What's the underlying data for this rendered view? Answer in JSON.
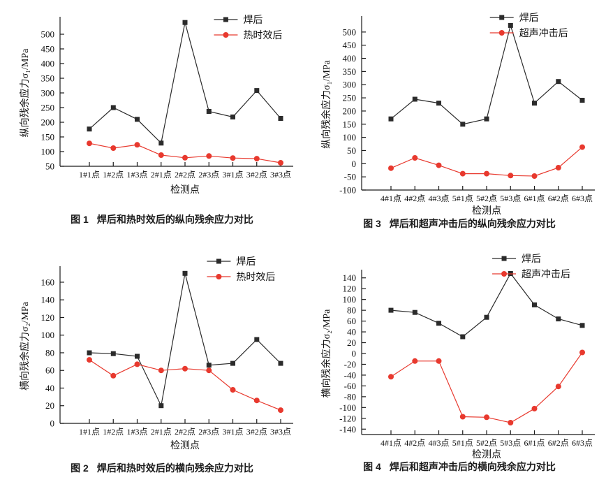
{
  "page": {
    "background": "#ffffff",
    "text_color": "#1a1a1a"
  },
  "colors": {
    "series_welded": "#2b2b2b",
    "series_treated_red": "#e8392e",
    "axis": "#1a1a1a"
  },
  "chart_data": [
    {
      "id": "figure-1",
      "type": "line",
      "caption_label": "图 1",
      "caption_text": "焊后和热时效后的纵向残余应力对比",
      "xlabel": "检测点",
      "ylabel": "纵向残余应力σ₁/MPa",
      "categories": [
        "1#1点",
        "1#2点",
        "1#3点",
        "2#1点",
        "2#2点",
        "2#3点",
        "3#1点",
        "3#2点",
        "3#3点"
      ],
      "ylim": [
        50,
        550
      ],
      "yticks": [
        50,
        100,
        150,
        200,
        250,
        300,
        350,
        400,
        450,
        500
      ],
      "grid": false,
      "legend_position": "top-right",
      "series": [
        {
          "name": "焊后",
          "marker": "square",
          "color": "#2b2b2b",
          "values": [
            177,
            250,
            210,
            129,
            540,
            237,
            218,
            308,
            213
          ]
        },
        {
          "name": "热时效后",
          "marker": "circle",
          "color": "#e8392e",
          "values": [
            128,
            112,
            123,
            88,
            79,
            85,
            78,
            76,
            62
          ]
        }
      ]
    },
    {
      "id": "figure-2",
      "type": "line",
      "caption_label": "图 2",
      "caption_text": "焊后和热时效后的横向残余应力对比",
      "xlabel": "检测点",
      "ylabel": "横向残余应力σ₂/MPa",
      "categories": [
        "1#1点",
        "1#2点",
        "1#3点",
        "2#1点",
        "2#2点",
        "2#3点",
        "3#1点",
        "3#2点",
        "3#3点"
      ],
      "ylim": [
        0,
        175
      ],
      "yticks": [
        0,
        20,
        40,
        60,
        80,
        100,
        120,
        140,
        160
      ],
      "grid": false,
      "legend_position": "top-right",
      "series": [
        {
          "name": "焊后",
          "marker": "square",
          "color": "#2b2b2b",
          "values": [
            80,
            79,
            76,
            20,
            170,
            66,
            68,
            95,
            68
          ]
        },
        {
          "name": "热时效后",
          "marker": "circle",
          "color": "#e8392e",
          "values": [
            72,
            54,
            67,
            60,
            62,
            60,
            38,
            26,
            15
          ]
        }
      ]
    },
    {
      "id": "figure-3",
      "type": "line",
      "caption_label": "图 3",
      "caption_text": "焊后和超声冲击后的纵向残余应力对比",
      "xlabel": "检测点",
      "ylabel": "纵向残余应力σ₁/MPa",
      "categories": [
        "4#1点",
        "4#2点",
        "4#3点",
        "5#1点",
        "5#2点",
        "5#3点",
        "6#1点",
        "6#2点",
        "6#3点"
      ],
      "ylim": [
        -100,
        550
      ],
      "yticks": [
        -100,
        -50,
        0,
        50,
        100,
        150,
        200,
        250,
        300,
        350,
        400,
        450,
        500
      ],
      "grid": false,
      "legend_position": "top-right",
      "series": [
        {
          "name": "焊后",
          "marker": "square",
          "color": "#2b2b2b",
          "values": [
            170,
            245,
            230,
            150,
            170,
            525,
            230,
            312,
            241
          ]
        },
        {
          "name": "超声冲击后",
          "marker": "circle",
          "color": "#e8392e",
          "values": [
            -17,
            22,
            -6,
            -38,
            -38,
            -45,
            -47,
            -15,
            63
          ]
        }
      ]
    },
    {
      "id": "figure-4",
      "type": "line",
      "caption_label": "图 4",
      "caption_text": "焊后和超声冲击后的横向残余应力对比",
      "xlabel": "检测点",
      "ylabel": "横向残余应力σ₂/MPa",
      "categories": [
        "4#1点",
        "4#2点",
        "4#3点",
        "5#1点",
        "5#2点",
        "5#3点",
        "6#1点",
        "6#2点",
        "6#3点"
      ],
      "ylim": [
        -150,
        150
      ],
      "yticks": [
        -140,
        -120,
        -100,
        -80,
        -60,
        -40,
        -20,
        0,
        20,
        40,
        60,
        80,
        100,
        120,
        140
      ],
      "grid": false,
      "legend_position": "top-right",
      "series": [
        {
          "name": "焊后",
          "marker": "square",
          "color": "#2b2b2b",
          "values": [
            80,
            76,
            56,
            31,
            67,
            148,
            90,
            64,
            52
          ]
        },
        {
          "name": "超声冲击后",
          "marker": "circle",
          "color": "#e8392e",
          "values": [
            -43,
            -14,
            -14,
            -117,
            -118,
            -128,
            -102,
            -61,
            2
          ]
        }
      ]
    }
  ]
}
